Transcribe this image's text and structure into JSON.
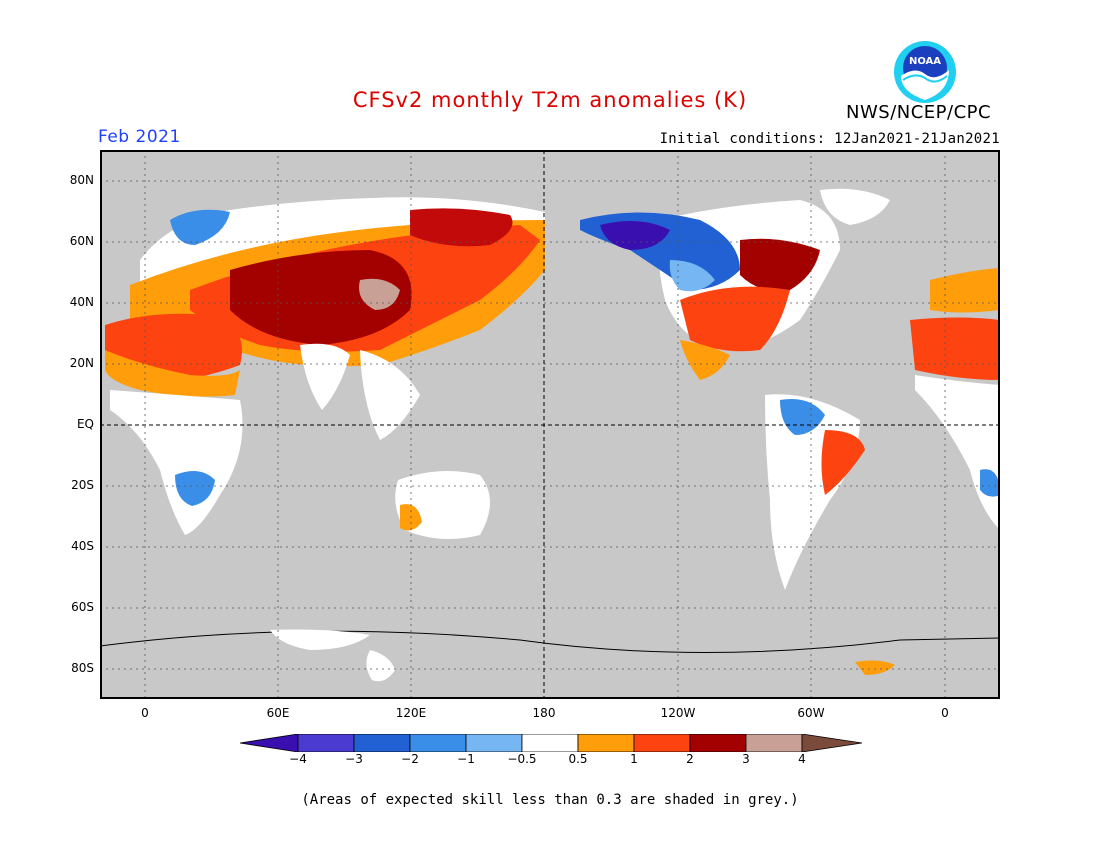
{
  "title": "CFSv2 monthly T2m anomalies (K)",
  "period": "Feb 2021",
  "initial_conditions": "Initial conditions: 12Jan2021-21Jan2021",
  "agency": "NWS/NCEP/CPC",
  "logo_text": "NOAA",
  "colors": {
    "title": "#dd0000",
    "period": "#1f3fff",
    "land_grey": "#c8c8c8",
    "map_border": "#000000",
    "wm4": "#3a0fb0",
    "wm3": "#4b3bd0",
    "wm2": "#2261d3",
    "wm1": "#3b8ee8",
    "wm05": "#76b6f2",
    "white": "#ffffff",
    "w05": "#ff9d0a",
    "w1": "#fd4410",
    "w2": "#c20a0a",
    "w3": "#a30000",
    "w4": "#c9a096",
    "w5": "#7a4a3a"
  },
  "lat_labels": [
    "80N",
    "60N",
    "40N",
    "20N",
    "EQ",
    "20S",
    "40S",
    "60S",
    "80S"
  ],
  "lon_labels": [
    "0",
    "60E",
    "120E",
    "180",
    "120W",
    "60W",
    "0"
  ],
  "colorbar": {
    "ticks": [
      "−4",
      "−3",
      "−2",
      "−1",
      "−0.5",
      "0.5",
      "1",
      "2",
      "3",
      "4"
    ],
    "colors": [
      "#3a0fb0",
      "#4b3bd0",
      "#2261d3",
      "#3b8ee8",
      "#76b6f2",
      "#ffffff",
      "#ff9d0a",
      "#fd4410",
      "#c20a0a",
      "#a30000",
      "#c9a096",
      "#7a4a3a"
    ]
  },
  "footnote": "(Areas of expected skill less than 0.3 are shaded in grey.)"
}
